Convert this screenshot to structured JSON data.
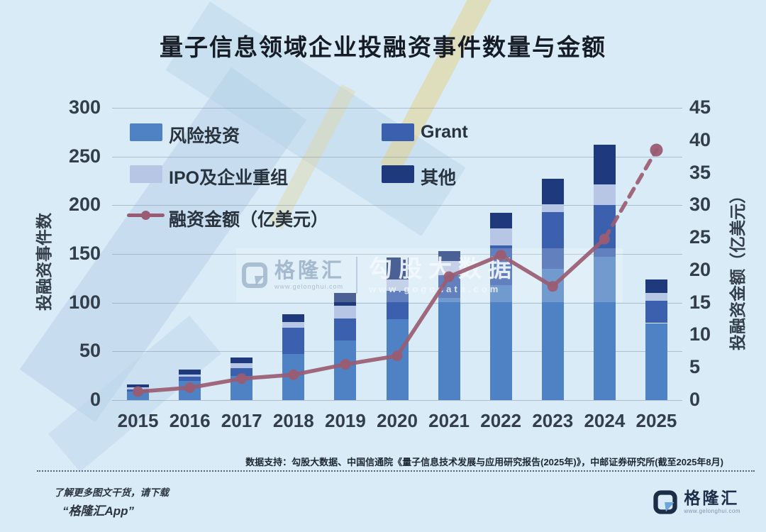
{
  "title": "量子信息领域企业投融资事件数量与金额",
  "colors": {
    "background": "#d9ebf7",
    "venture": "#4e82c4",
    "grant": "#3b60ae",
    "ipo": "#b6c6e4",
    "other": "#1e3a7c",
    "line": "#9a5c72",
    "text": "#333e4a"
  },
  "chart_data": {
    "type": "bar",
    "subtype": "stacked-bar-with-line",
    "categories": [
      "2015",
      "2016",
      "2017",
      "2018",
      "2019",
      "2020",
      "2021",
      "2022",
      "2023",
      "2024",
      "2025"
    ],
    "stacked_bar_series": [
      {
        "name": "风险投资",
        "color": "#4e82c4",
        "values": [
          9,
          20,
          25,
          47,
          61,
          83,
          105,
          118,
          135,
          147,
          79
        ]
      },
      {
        "name": "Grant",
        "color": "#3b60ae",
        "values": [
          2,
          4,
          8,
          27,
          23,
          29,
          23,
          41,
          58,
          53,
          23
        ]
      },
      {
        "name": "IPO及企业重组",
        "color": "#b6c6e4",
        "values": [
          2,
          2,
          5,
          6,
          13,
          12,
          15,
          17,
          8,
          21,
          8
        ]
      },
      {
        "name": "其他",
        "color": "#1e3a7c",
        "values": [
          3,
          5,
          6,
          8,
          13,
          22,
          10,
          16,
          26,
          41,
          14
        ]
      }
    ],
    "bar_totals": [
      16,
      31,
      44,
      88,
      110,
      146,
      153,
      192,
      227,
      262,
      124
    ],
    "line_series": {
      "name": "融资金额（亿美元）",
      "color": "#9a5c72",
      "values": [
        1.3,
        1.9,
        3.3,
        3.9,
        5.5,
        6.8,
        19,
        22.3,
        17.5,
        24.8,
        38.5
      ],
      "dashed_from_index": 9
    },
    "left_axis": {
      "title": "投融资事件数",
      "ticks": [
        0,
        50,
        100,
        150,
        200,
        250,
        300
      ],
      "max": 300
    },
    "right_axis": {
      "title": "投融资金额（亿美元）",
      "ticks": [
        0,
        5,
        10,
        15,
        20,
        25,
        30,
        35,
        40,
        45
      ],
      "max": 45
    },
    "grid": true,
    "legend_position": "top-left-inside"
  },
  "watermark": {
    "gelonghui_name": "格隆汇",
    "gelonghui_url": "www.gelonghui.com",
    "gogodata_name": "勾股大数据",
    "gogodata_url": "www.gogodata.com"
  },
  "footer": {
    "source": "数据支持：勾股大数据、中国信通院《量子信息技术发展与应用研究报告(2025年)》，中邮证券研究所(截至2025年8月)",
    "promo_line1": "了解更多图文干货，请下载",
    "promo_line2": "“格隆汇App”",
    "brand_name": "格隆汇",
    "brand_url": "www.gelonghui.com"
  }
}
